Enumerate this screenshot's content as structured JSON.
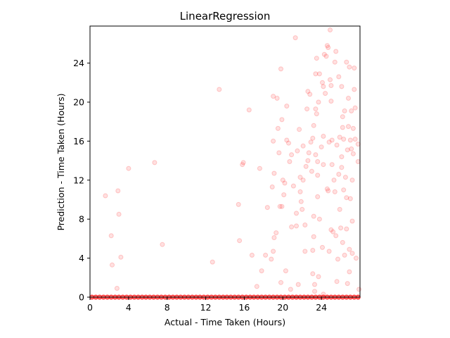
{
  "chart_data": {
    "type": "scatter",
    "title": "LinearRegression",
    "xlabel": "Actual - Time Taken (Hours)",
    "ylabel": "Prediction - Time Taken (Hours)",
    "xlim": [
      0,
      28
    ],
    "ylim": [
      0,
      27.8
    ],
    "xticks": [
      0,
      4,
      8,
      12,
      16,
      20,
      24
    ],
    "yticks": [
      0,
      4,
      8,
      12,
      16,
      20,
      24
    ],
    "grid": false,
    "marker_color": "#ff0000",
    "marker_alpha": 0.12,
    "series": [
      {
        "points": [
          [
            1.6,
            10.4
          ],
          [
            2.2,
            6.3
          ],
          [
            2.3,
            3.3
          ],
          [
            2.8,
            0.9
          ],
          [
            2.9,
            10.9
          ],
          [
            3.0,
            8.5
          ],
          [
            3.2,
            4.1
          ],
          [
            4.0,
            13.2
          ],
          [
            6.7,
            13.8
          ],
          [
            7.5,
            5.4
          ],
          [
            12.7,
            3.6
          ],
          [
            13.4,
            21.3
          ],
          [
            15.4,
            9.5
          ],
          [
            15.5,
            5.8
          ],
          [
            15.8,
            13.6
          ],
          [
            15.9,
            13.8
          ],
          [
            16.5,
            19.2
          ],
          [
            16.8,
            4.3
          ],
          [
            17.3,
            1.1
          ],
          [
            17.6,
            13.2
          ],
          [
            17.8,
            2.7
          ],
          [
            18.2,
            4.3
          ],
          [
            18.4,
            9.2
          ],
          [
            18.8,
            3.9
          ],
          [
            18.9,
            11.3
          ],
          [
            19.0,
            16.0
          ],
          [
            19.0,
            4.7
          ],
          [
            19.0,
            20.6
          ],
          [
            19.1,
            6.1
          ],
          [
            19.1,
            12.7
          ],
          [
            19.3,
            6.6
          ],
          [
            19.4,
            20.4
          ],
          [
            19.5,
            17.3
          ],
          [
            19.6,
            14.8
          ],
          [
            19.7,
            9.3
          ],
          [
            19.8,
            23.4
          ],
          [
            19.8,
            1.5
          ],
          [
            19.9,
            9.3
          ],
          [
            19.9,
            18.2
          ],
          [
            20.0,
            12.0
          ],
          [
            20.1,
            10.5
          ],
          [
            20.2,
            11.7
          ],
          [
            20.3,
            2.7
          ],
          [
            20.4,
            19.6
          ],
          [
            20.4,
            16.1
          ],
          [
            20.6,
            15.8
          ],
          [
            20.7,
            13.9
          ],
          [
            20.8,
            0.8
          ],
          [
            20.9,
            7.2
          ],
          [
            20.9,
            14.6
          ],
          [
            21.1,
            11.4
          ],
          [
            21.3,
            26.6
          ],
          [
            21.4,
            8.6
          ],
          [
            21.4,
            7.3
          ],
          [
            21.5,
            15.0
          ],
          [
            21.6,
            1.3
          ],
          [
            21.7,
            17.2
          ],
          [
            21.8,
            12.3
          ],
          [
            21.8,
            10.8
          ],
          [
            21.9,
            9.8
          ],
          [
            22.0,
            9.0
          ],
          [
            22.1,
            15.5
          ],
          [
            22.1,
            12.0
          ],
          [
            22.3,
            7.4
          ],
          [
            22.3,
            4.7
          ],
          [
            22.4,
            13.4
          ],
          [
            22.5,
            19.3
          ],
          [
            22.6,
            21.1
          ],
          [
            22.6,
            14.0
          ],
          [
            22.7,
            14.8
          ],
          [
            22.8,
            20.8
          ],
          [
            22.9,
            15.9
          ],
          [
            23.0,
            12.9
          ],
          [
            23.1,
            16.3
          ],
          [
            23.1,
            2.4
          ],
          [
            23.1,
            4.8
          ],
          [
            23.2,
            8.3
          ],
          [
            23.2,
            6.2
          ],
          [
            23.2,
            17.6
          ],
          [
            23.3,
            0.6
          ],
          [
            23.3,
            1.3
          ],
          [
            23.4,
            14.6
          ],
          [
            23.4,
            19.3
          ],
          [
            23.4,
            22.9
          ],
          [
            23.5,
            24.5
          ],
          [
            23.5,
            18.8
          ],
          [
            23.6,
            12.5
          ],
          [
            23.6,
            10.3
          ],
          [
            23.6,
            13.9
          ],
          [
            23.7,
            2.1
          ],
          [
            23.7,
            20.0
          ],
          [
            23.8,
            8.0
          ],
          [
            23.8,
            22.9
          ],
          [
            24.0,
            15.4
          ],
          [
            24.1,
            22.0
          ],
          [
            24.1,
            5.1
          ],
          [
            24.2,
            16.5
          ],
          [
            24.2,
            21.6
          ],
          [
            24.2,
            13.6
          ],
          [
            24.2,
            0.3
          ],
          [
            24.3,
            24.9
          ],
          [
            24.4,
            20.9
          ],
          [
            24.5,
            24.7
          ],
          [
            24.6,
            25.8
          ],
          [
            24.6,
            11.1
          ],
          [
            24.7,
            10.9
          ],
          [
            24.7,
            25.6
          ],
          [
            24.8,
            15.9
          ],
          [
            24.8,
            4.7
          ],
          [
            24.9,
            27.4
          ],
          [
            24.9,
            22.3
          ],
          [
            25.0,
            21.7
          ],
          [
            25.0,
            20.1
          ],
          [
            25.0,
            6.9
          ],
          [
            25.1,
            13.6
          ],
          [
            25.1,
            16.1
          ],
          [
            25.2,
            6.7
          ],
          [
            25.3,
            12.0
          ],
          [
            25.4,
            24.1
          ],
          [
            25.4,
            10.8
          ],
          [
            25.5,
            25.2
          ],
          [
            25.5,
            6.3
          ],
          [
            25.6,
            15.6
          ],
          [
            25.6,
            1.6
          ],
          [
            25.7,
            3.9
          ],
          [
            25.8,
            22.6
          ],
          [
            25.8,
            12.6
          ],
          [
            25.9,
            9.0
          ],
          [
            25.9,
            16.4
          ],
          [
            26.0,
            7.1
          ],
          [
            26.1,
            14.4
          ],
          [
            26.1,
            13.3
          ],
          [
            26.1,
            21.6
          ],
          [
            26.2,
            18.5
          ],
          [
            26.2,
            17.4
          ],
          [
            26.2,
            5.6
          ],
          [
            26.3,
            11.0
          ],
          [
            26.3,
            16.2
          ],
          [
            26.4,
            19.1
          ],
          [
            26.4,
            4.3
          ],
          [
            26.5,
            12.3
          ],
          [
            26.6,
            7.0
          ],
          [
            26.6,
            10.2
          ],
          [
            26.6,
            24.1
          ],
          [
            26.7,
            15.1
          ],
          [
            26.7,
            1.4
          ],
          [
            26.8,
            17.5
          ],
          [
            26.8,
            20.4
          ],
          [
            26.9,
            2.6
          ],
          [
            26.9,
            4.9
          ],
          [
            26.9,
            23.6
          ],
          [
            27.0,
            10.1
          ],
          [
            27.0,
            16.1
          ],
          [
            27.1,
            19.1
          ],
          [
            27.1,
            15.2
          ],
          [
            27.2,
            4.5
          ],
          [
            27.2,
            12.0
          ],
          [
            27.2,
            7.8
          ],
          [
            27.3,
            17.3
          ],
          [
            27.3,
            14.7
          ],
          [
            27.4,
            23.5
          ],
          [
            27.4,
            21.3
          ],
          [
            27.5,
            16.2
          ],
          [
            27.5,
            19.4
          ],
          [
            27.6,
            4.0
          ],
          [
            27.8,
            15.7
          ],
          [
            27.8,
            13.9
          ],
          [
            27.9,
            0.8
          ]
        ],
        "zero_prediction_points": [
          0.2,
          0.6,
          1.0,
          1.4,
          1.8,
          2.2,
          2.6,
          3.0,
          3.4,
          3.8,
          4.2,
          4.6,
          5.0,
          5.4,
          5.8,
          6.2,
          6.6,
          7.0,
          7.4,
          7.8,
          8.2,
          8.6,
          9.0,
          9.4,
          9.8,
          10.2,
          10.6,
          11.0,
          11.4,
          11.8,
          12.2,
          12.6,
          13.0,
          13.4,
          13.8,
          14.2,
          14.6,
          15.0,
          15.4,
          15.8,
          16.2,
          16.6,
          17.0,
          17.4,
          17.8,
          18.2,
          18.6,
          19.0,
          19.4,
          19.8,
          20.2,
          20.6,
          21.0,
          21.4,
          21.8,
          22.2,
          22.6,
          23.0,
          23.4,
          23.8,
          24.2,
          24.6,
          25.0,
          25.4,
          25.8,
          26.2,
          26.6,
          27.0,
          27.4,
          27.8
        ]
      }
    ]
  }
}
